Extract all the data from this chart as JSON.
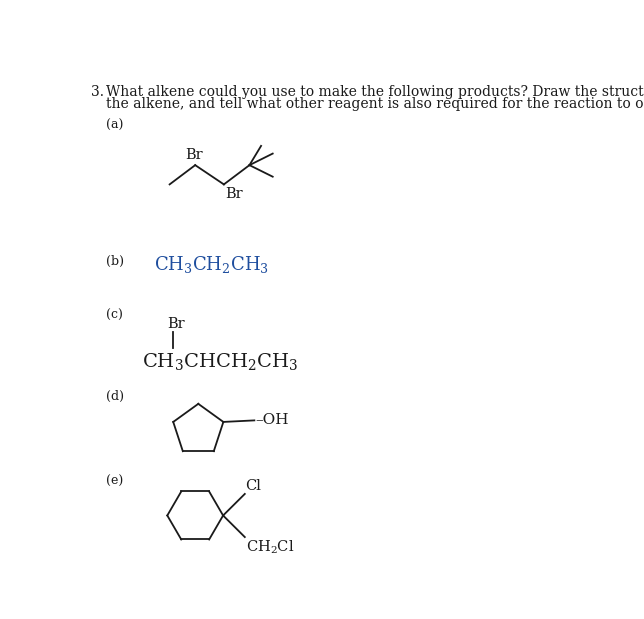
{
  "title_number": "3.",
  "title_text1": "What alkene could you use to make the following products? Draw the structure of",
  "title_text2": "the alkene, and tell what other reagent is also required for the reaction to occur.",
  "label_a": "(a)",
  "label_b": "(b)",
  "label_c": "(c)",
  "label_d": "(d)",
  "label_e": "(e)",
  "bg_color": "#ffffff",
  "text_color": "#1a1a1a",
  "label_color": "#1a1a1a",
  "font_size_title": 10.0,
  "font_size_label": 9.0,
  "font_size_body": 10.5,
  "font_size_chem": 13.0
}
